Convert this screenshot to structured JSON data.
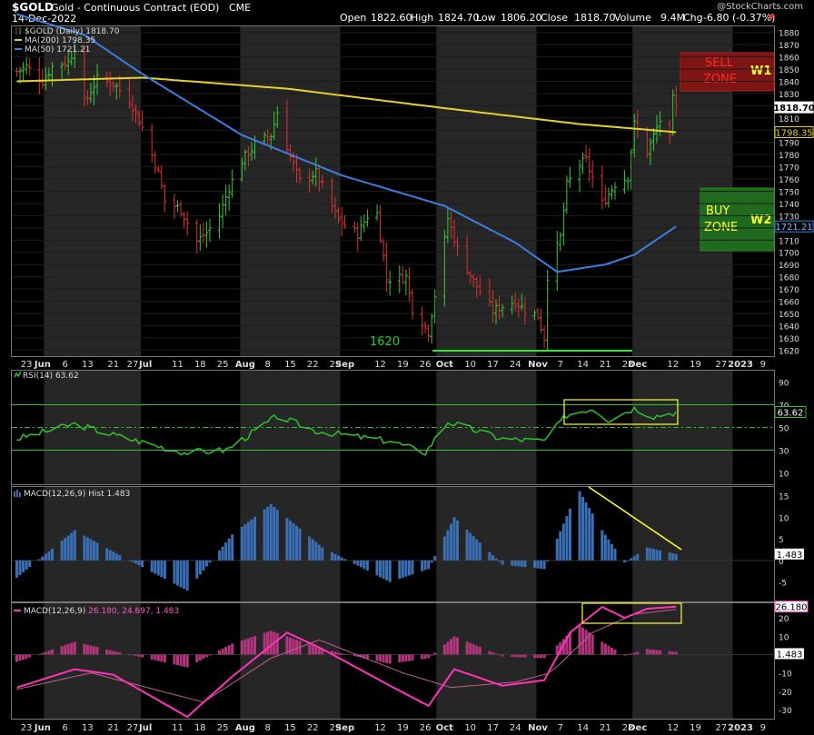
{
  "header": {
    "symbol": "$GOLD",
    "name": "Gold - Continuous Contract (EOD)",
    "exchange": "CME",
    "date": "14-Dec-2022",
    "watermark": "@StockCharts.com",
    "open_label": "Open",
    "open": "1822.60",
    "high_label": "High",
    "high": "1824.70",
    "low_label": "Low",
    "low": "1806.20",
    "close_label": "Close",
    "close": "1818.70",
    "volume_label": "Volume",
    "volume": "9.4M",
    "chg_label": "Chg",
    "chg": "-6.80 (-0.37%)"
  },
  "colors": {
    "background": "#000000",
    "panel_band": "#262626",
    "up_bar": "#33cc33",
    "down_bar": "#e03030",
    "ma200": "#e8d12a",
    "ma50": "#3a7fe0",
    "rsi": "#2ec22e",
    "macd_hist": "#3b6fb5",
    "macd_line": "#ff33bb",
    "macd_hist2": "#b4357f",
    "annotation_yellow": "#ffff00",
    "support_green": "#22ee22",
    "sell_zone": "#8a1010",
    "buy_zone": "#1a6e1a"
  },
  "price_panel": {
    "legend": [
      {
        "label": "$GOLD (Daily) 1818.70",
        "color": "#ffffff",
        "kind": "bars"
      },
      {
        "label": "MA(200) 1798.35",
        "color": "#e8d12a",
        "kind": "line"
      },
      {
        "label": "MA(50) 1721.21",
        "color": "#3a7fe0",
        "kind": "line"
      }
    ],
    "y_ticks": [
      1620,
      1630,
      1640,
      1650,
      1660,
      1670,
      1680,
      1690,
      1700,
      1710,
      1720,
      1730,
      1740,
      1750,
      1760,
      1770,
      1780,
      1790,
      1800,
      1810,
      1820,
      1830,
      1840,
      1850,
      1860,
      1870,
      1880
    ],
    "ylim": [
      1615,
      1885
    ],
    "last_tags": [
      {
        "value": 1818.7,
        "text": "1818.70",
        "style": "white"
      },
      {
        "value": 1798.35,
        "text": "1798.35",
        "style": "ma200"
      },
      {
        "value": 1721.21,
        "text": "1721.21",
        "style": "ma50"
      }
    ],
    "annotations": {
      "support_label": "1620",
      "sell_zone_label": "SELL ZONE",
      "sell_wave": "W1",
      "buy_zone_label": "BUY ZONE",
      "buy_wave": "W2"
    }
  },
  "rsi_panel": {
    "legend": "RSI(14) 63.62",
    "y_ticks": [
      10,
      30,
      50,
      70,
      90
    ],
    "ylim": [
      0,
      100
    ],
    "overbought": 70,
    "oversold": 30,
    "mid": 50,
    "last_value": 63.62,
    "last_text": "63.62"
  },
  "macd_hist_panel": {
    "legend": "MACD(12,26,9) Hist 1.483",
    "y_ticks": [
      -5,
      0,
      5,
      10,
      15
    ],
    "ylim": [
      -9.5,
      17
    ],
    "last_text": "1.483"
  },
  "macd_panel": {
    "legend_prefix": "MACD(12,26,9)",
    "legend_values": "26.180, 24.697, 1.483",
    "y_ticks": [
      -30,
      -20,
      -10,
      0,
      10,
      20
    ],
    "ylim": [
      -35,
      28
    ],
    "last_macd_text": "26.180",
    "last_hist_text": "1.483"
  },
  "x_axis": {
    "labels": [
      {
        "text": "23",
        "bold": false
      },
      {
        "text": "Jun",
        "bold": true
      },
      {
        "text": "6",
        "bold": false
      },
      {
        "text": "13",
        "bold": false
      },
      {
        "text": "21",
        "bold": false
      },
      {
        "text": "27",
        "bold": false
      },
      {
        "text": "Jul",
        "bold": true
      },
      {
        "text": "11",
        "bold": false
      },
      {
        "text": "18",
        "bold": false
      },
      {
        "text": "25",
        "bold": false
      },
      {
        "text": "Aug",
        "bold": true
      },
      {
        "text": "8",
        "bold": false
      },
      {
        "text": "15",
        "bold": false
      },
      {
        "text": "22",
        "bold": false
      },
      {
        "text": "29",
        "bold": false
      },
      {
        "text": "Sep",
        "bold": true
      },
      {
        "text": "12",
        "bold": false
      },
      {
        "text": "19",
        "bold": false
      },
      {
        "text": "26",
        "bold": false
      },
      {
        "text": "Oct",
        "bold": true
      },
      {
        "text": "10",
        "bold": false
      },
      {
        "text": "17",
        "bold": false
      },
      {
        "text": "24",
        "bold": false
      },
      {
        "text": "Nov",
        "bold": true
      },
      {
        "text": "7",
        "bold": false
      },
      {
        "text": "14",
        "bold": false
      },
      {
        "text": "21",
        "bold": false
      },
      {
        "text": "28",
        "bold": false
      },
      {
        "text": "Dec",
        "bold": true
      },
      {
        "text": "12",
        "bold": false
      },
      {
        "text": "19",
        "bold": false
      },
      {
        "text": "27",
        "bold": false
      },
      {
        "text": "2023",
        "bold": true
      },
      {
        "text": "9",
        "bold": false
      }
    ]
  },
  "chart_data": {
    "type": "candlestick",
    "title": "$GOLD Gold - Continuous Contract (EOD) CME",
    "period": "Daily",
    "last_date": "14-Dec-2022",
    "ohlc_last": {
      "open": 1822.6,
      "high": 1824.7,
      "low": 1806.2,
      "close": 1818.7
    },
    "anchor_closes": [
      [
        "2022-05-23",
        1848
      ],
      [
        "2022-05-26",
        1852
      ],
      [
        "2022-05-31",
        1840
      ],
      [
        "2022-06-03",
        1852
      ],
      [
        "2022-06-08",
        1856
      ],
      [
        "2022-06-10",
        1868
      ],
      [
        "2022-06-13",
        1822
      ],
      [
        "2022-06-17",
        1842
      ],
      [
        "2022-06-22",
        1838
      ],
      [
        "2022-06-27",
        1825
      ],
      [
        "2022-06-30",
        1808
      ],
      [
        "2022-07-01",
        1802
      ],
      [
        "2022-07-06",
        1765
      ],
      [
        "2022-07-08",
        1742
      ],
      [
        "2022-07-13",
        1735
      ],
      [
        "2022-07-18",
        1709
      ],
      [
        "2022-07-21",
        1716
      ],
      [
        "2022-07-25",
        1730
      ],
      [
        "2022-07-28",
        1753
      ],
      [
        "2022-08-01",
        1775
      ],
      [
        "2022-08-05",
        1788
      ],
      [
        "2022-08-10",
        1796
      ],
      [
        "2022-08-12",
        1815
      ],
      [
        "2022-08-16",
        1778
      ],
      [
        "2022-08-19",
        1758
      ],
      [
        "2022-08-24",
        1765
      ],
      [
        "2022-08-26",
        1754
      ],
      [
        "2022-08-31",
        1726
      ],
      [
        "2022-09-06",
        1715
      ],
      [
        "2022-09-09",
        1730
      ],
      [
        "2022-09-12",
        1732
      ],
      [
        "2022-09-15",
        1678
      ],
      [
        "2022-09-21",
        1680
      ],
      [
        "2022-09-23",
        1654
      ],
      [
        "2022-09-28",
        1635
      ],
      [
        "2022-10-03",
        1710
      ],
      [
        "2022-10-04",
        1728
      ],
      [
        "2022-10-07",
        1703
      ],
      [
        "2022-10-12",
        1676
      ],
      [
        "2022-10-18",
        1652
      ],
      [
        "2022-10-21",
        1656
      ],
      [
        "2022-10-25",
        1660
      ],
      [
        "2022-10-28",
        1653
      ],
      [
        "2022-11-01",
        1648
      ],
      [
        "2022-11-03",
        1630
      ],
      [
        "2022-11-04",
        1681
      ],
      [
        "2022-11-08",
        1712
      ],
      [
        "2022-11-10",
        1755
      ],
      [
        "2022-11-14",
        1772
      ],
      [
        "2022-11-16",
        1775
      ],
      [
        "2022-11-21",
        1740
      ],
      [
        "2022-11-25",
        1756
      ],
      [
        "2022-11-29",
        1762
      ],
      [
        "2022-12-01",
        1805
      ],
      [
        "2022-12-05",
        1782
      ],
      [
        "2022-12-09",
        1808
      ],
      [
        "2022-12-12",
        1792
      ],
      [
        "2022-12-13",
        1825
      ],
      [
        "2022-12-14",
        1818.7
      ]
    ],
    "ma200": [
      [
        "2022-05-23",
        1840
      ],
      [
        "2022-07-01",
        1843
      ],
      [
        "2022-08-15",
        1834
      ],
      [
        "2022-10-03",
        1818
      ],
      [
        "2022-11-14",
        1805
      ],
      [
        "2022-12-14",
        1798.35
      ]
    ],
    "ma50": [
      [
        "2022-05-23",
        1895
      ],
      [
        "2022-06-13",
        1878
      ],
      [
        "2022-07-01",
        1846
      ],
      [
        "2022-08-01",
        1796
      ],
      [
        "2022-09-01",
        1763
      ],
      [
        "2022-10-03",
        1738
      ],
      [
        "2022-10-25",
        1708
      ],
      [
        "2022-11-07",
        1684
      ],
      [
        "2022-11-22",
        1690
      ],
      [
        "2022-12-01",
        1698
      ],
      [
        "2022-12-14",
        1721.21
      ]
    ],
    "rsi14": [
      [
        "2022-05-23",
        40
      ],
      [
        "2022-06-10",
        53
      ],
      [
        "2022-06-24",
        42
      ],
      [
        "2022-07-14",
        28
      ],
      [
        "2022-07-27",
        30
      ],
      [
        "2022-08-12",
        60
      ],
      [
        "2022-08-24",
        47
      ],
      [
        "2022-09-16",
        38
      ],
      [
        "2022-09-27",
        28
      ],
      [
        "2022-10-04",
        55
      ],
      [
        "2022-10-21",
        40
      ],
      [
        "2022-11-03",
        38
      ],
      [
        "2022-11-10",
        61
      ],
      [
        "2022-11-18",
        67
      ],
      [
        "2022-11-23",
        57
      ],
      [
        "2022-12-01",
        67
      ],
      [
        "2022-12-07",
        60
      ],
      [
        "2022-12-14",
        63.62
      ]
    ],
    "macd_line": [
      [
        "2022-05-23",
        -18
      ],
      [
        "2022-06-10",
        -8
      ],
      [
        "2022-06-22",
        -11
      ],
      [
        "2022-07-15",
        -34
      ],
      [
        "2022-07-29",
        -12
      ],
      [
        "2022-08-15",
        12
      ],
      [
        "2022-08-26",
        3
      ],
      [
        "2022-09-16",
        -17
      ],
      [
        "2022-09-28",
        -28
      ],
      [
        "2022-10-06",
        -8
      ],
      [
        "2022-10-21",
        -17
      ],
      [
        "2022-11-03",
        -14
      ],
      [
        "2022-11-11",
        12
      ],
      [
        "2022-11-21",
        26
      ],
      [
        "2022-11-28",
        20
      ],
      [
        "2022-12-05",
        25
      ],
      [
        "2022-12-14",
        26.18
      ]
    ],
    "macd_signal": [
      [
        "2022-05-23",
        -19
      ],
      [
        "2022-06-15",
        -10
      ],
      [
        "2022-07-20",
        -26
      ],
      [
        "2022-08-10",
        -2
      ],
      [
        "2022-08-25",
        8
      ],
      [
        "2022-09-20",
        -10
      ],
      [
        "2022-10-05",
        -18
      ],
      [
        "2022-10-25",
        -15
      ],
      [
        "2022-11-05",
        -10
      ],
      [
        "2022-11-18",
        12
      ],
      [
        "2022-12-01",
        22
      ],
      [
        "2022-12-14",
        24.697
      ]
    ],
    "macd_hist": [
      [
        "2022-05-23",
        -4
      ],
      [
        "2022-06-10",
        7
      ],
      [
        "2022-06-22",
        2
      ],
      [
        "2022-07-15",
        -7
      ],
      [
        "2022-07-29",
        6
      ],
      [
        "2022-08-10",
        13
      ],
      [
        "2022-08-26",
        3
      ],
      [
        "2022-09-16",
        -5
      ],
      [
        "2022-09-28",
        -2
      ],
      [
        "2022-10-06",
        10
      ],
      [
        "2022-10-21",
        -1
      ],
      [
        "2022-11-03",
        -2
      ],
      [
        "2022-11-11",
        12
      ],
      [
        "2022-11-14",
        16
      ],
      [
        "2022-11-21",
        7
      ],
      [
        "2022-11-28",
        -0.5
      ],
      [
        "2022-12-05",
        3
      ],
      [
        "2022-12-14",
        1.483
      ]
    ]
  }
}
